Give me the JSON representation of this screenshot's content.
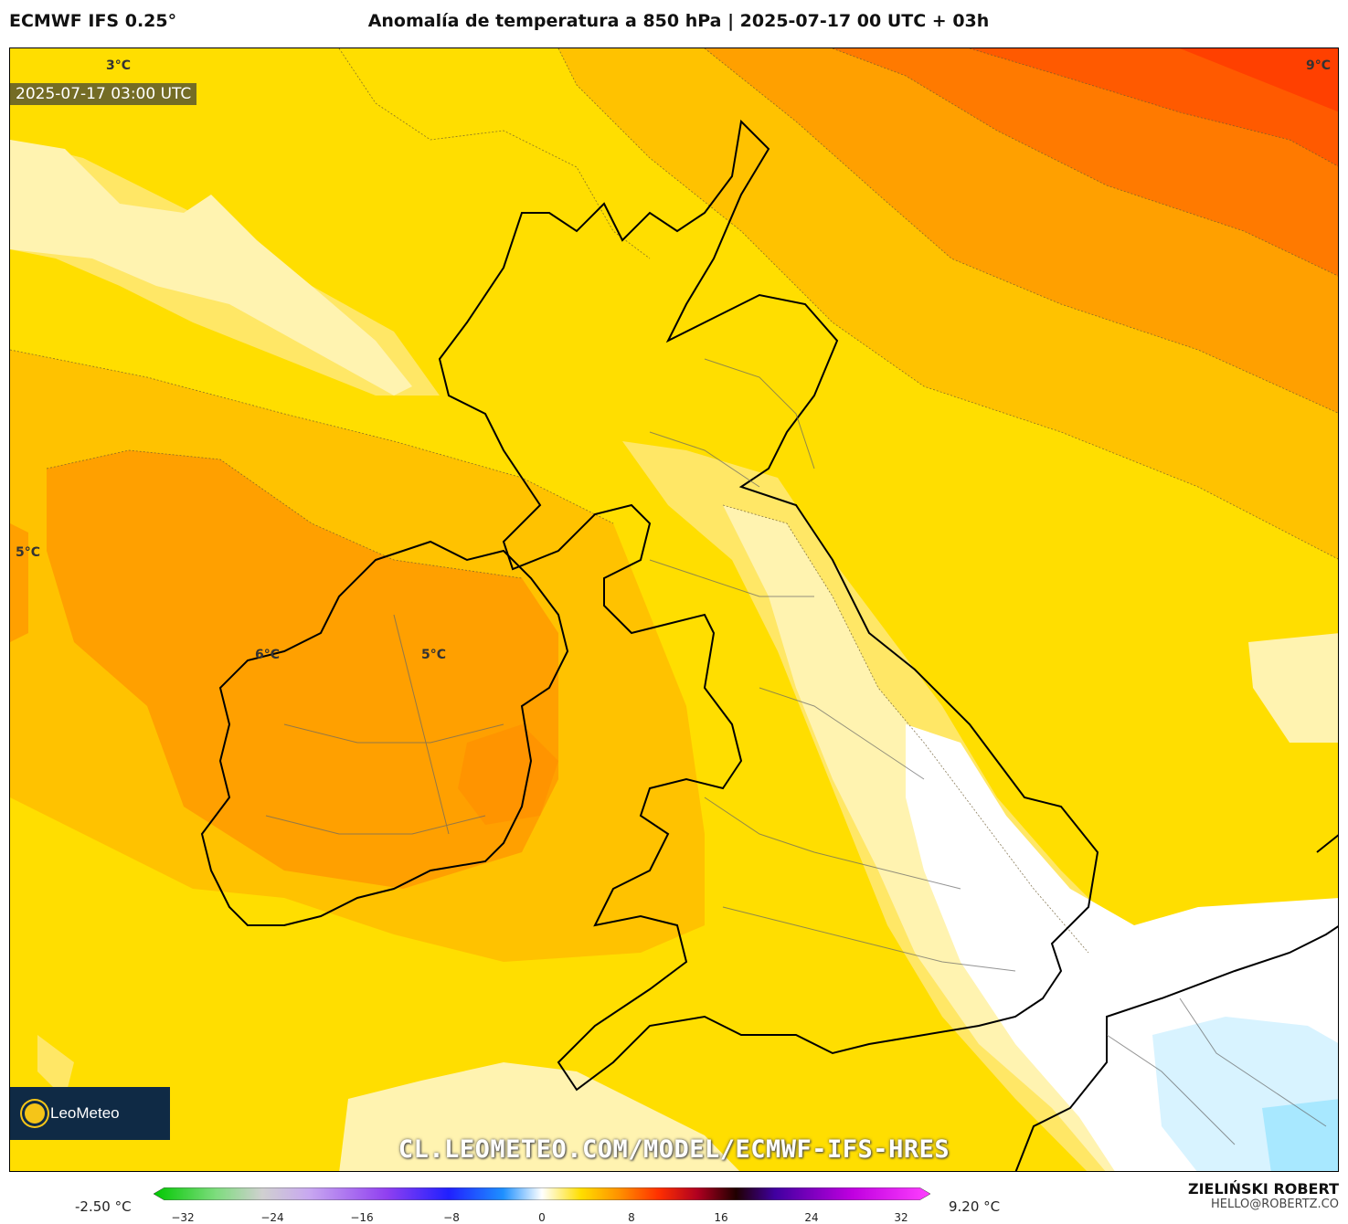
{
  "header": {
    "model": "ECMWF IFS 0.25°",
    "title": "Anomalía de temperatura a 850 hPa | 2025-07-17 00 UTC + 03h"
  },
  "map": {
    "valid_time": "2025-07-17 03:00 UTC",
    "contour_labels": [
      "3°C",
      "9°C",
      "5°C",
      "6°C",
      "5°C"
    ],
    "watermark_url": "CL.LEOMETEO.COM/MODEL/ECMWF-IFS-HRES",
    "logo_text": "LeoMeteo"
  },
  "colorbar": {
    "min_label": "-2.50 °C",
    "max_label": "9.20 °C",
    "ticks": [
      "−32",
      "−24",
      "−16",
      "−8",
      "0",
      "8",
      "16",
      "24",
      "32"
    ]
  },
  "author": {
    "name": "ZIELIŃSKI ROBERT",
    "email": "HELLO@ROBERTZ.CO"
  },
  "colors": {
    "light_yellow": "#fff3b0",
    "yellow": "#ffde00",
    "yellow_orange": "#ffc200",
    "orange": "#ffa000",
    "dark_orange": "#ff7a00",
    "red_orange": "#ff4000",
    "white": "#ffffff",
    "pale_blue": "#d8f3ff"
  }
}
